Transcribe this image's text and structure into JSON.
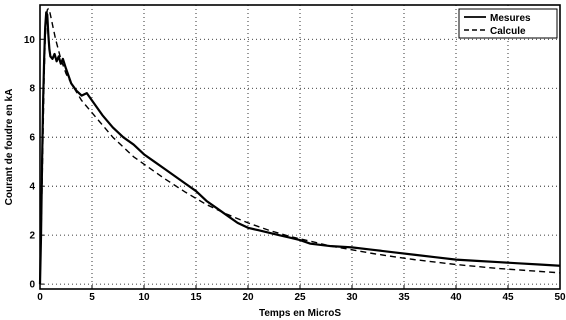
{
  "chart_data": {
    "type": "line",
    "xlabel": "Temps en MicroS",
    "ylabel": "Courant de foudre en kA",
    "xlim": [
      0,
      50
    ],
    "ylim": [
      -0.2,
      11.4
    ],
    "xticks": [
      0,
      5,
      10,
      15,
      20,
      25,
      30,
      35,
      40,
      45,
      50
    ],
    "yticks": [
      0,
      2,
      4,
      6,
      8,
      10
    ],
    "grid": true,
    "legend_position": "top-right",
    "series": [
      {
        "name": "Mesures",
        "style": "solid",
        "color": "#000000",
        "x": [
          0,
          0.1,
          0.2,
          0.3,
          0.4,
          0.5,
          0.6,
          0.7,
          0.8,
          0.9,
          1.0,
          1.2,
          1.4,
          1.6,
          1.8,
          2.0,
          2.2,
          2.5,
          3.0,
          3.5,
          4.0,
          4.5,
          5,
          6,
          7,
          8,
          9,
          10,
          11,
          12,
          13,
          14,
          15,
          16,
          17,
          18,
          19,
          20,
          21,
          22,
          23,
          24,
          25,
          26,
          27,
          28,
          30,
          32,
          34,
          36,
          38,
          40,
          42,
          44,
          46,
          48,
          50
        ],
        "y": [
          0,
          2.0,
          5.0,
          7.5,
          9.2,
          10.5,
          11.1,
          11.0,
          10.2,
          9.6,
          9.3,
          9.2,
          9.4,
          9.1,
          9.3,
          9.0,
          9.2,
          8.8,
          8.2,
          7.9,
          7.7,
          7.8,
          7.5,
          6.9,
          6.4,
          6.0,
          5.7,
          5.3,
          5.0,
          4.7,
          4.4,
          4.1,
          3.8,
          3.4,
          3.1,
          2.8,
          2.5,
          2.3,
          2.2,
          2.1,
          2.0,
          1.9,
          1.8,
          1.65,
          1.6,
          1.55,
          1.5,
          1.4,
          1.3,
          1.2,
          1.1,
          1.0,
          0.95,
          0.9,
          0.85,
          0.8,
          0.75
        ]
      },
      {
        "name": "Calcule",
        "style": "dashed",
        "color": "#000000",
        "x": [
          0,
          0.2,
          0.4,
          0.5,
          0.6,
          0.7,
          0.8,
          0.9,
          1.0,
          1.2,
          1.5,
          2.0,
          2.5,
          3,
          4,
          5,
          6,
          7,
          8,
          9,
          10,
          12,
          14,
          16,
          18,
          20,
          22,
          24,
          26,
          28,
          30,
          32,
          34,
          36,
          38,
          40,
          42,
          44,
          46,
          48,
          50
        ],
        "y": [
          0,
          4.0,
          8.5,
          10.0,
          10.8,
          11.2,
          11.25,
          11.2,
          11.0,
          10.6,
          10.0,
          9.2,
          8.6,
          8.2,
          7.5,
          7.0,
          6.5,
          6.0,
          5.6,
          5.2,
          4.9,
          4.3,
          3.75,
          3.25,
          2.85,
          2.5,
          2.2,
          1.95,
          1.75,
          1.55,
          1.4,
          1.25,
          1.12,
          1.0,
          0.9,
          0.8,
          0.72,
          0.64,
          0.58,
          0.52,
          0.46
        ]
      }
    ]
  }
}
